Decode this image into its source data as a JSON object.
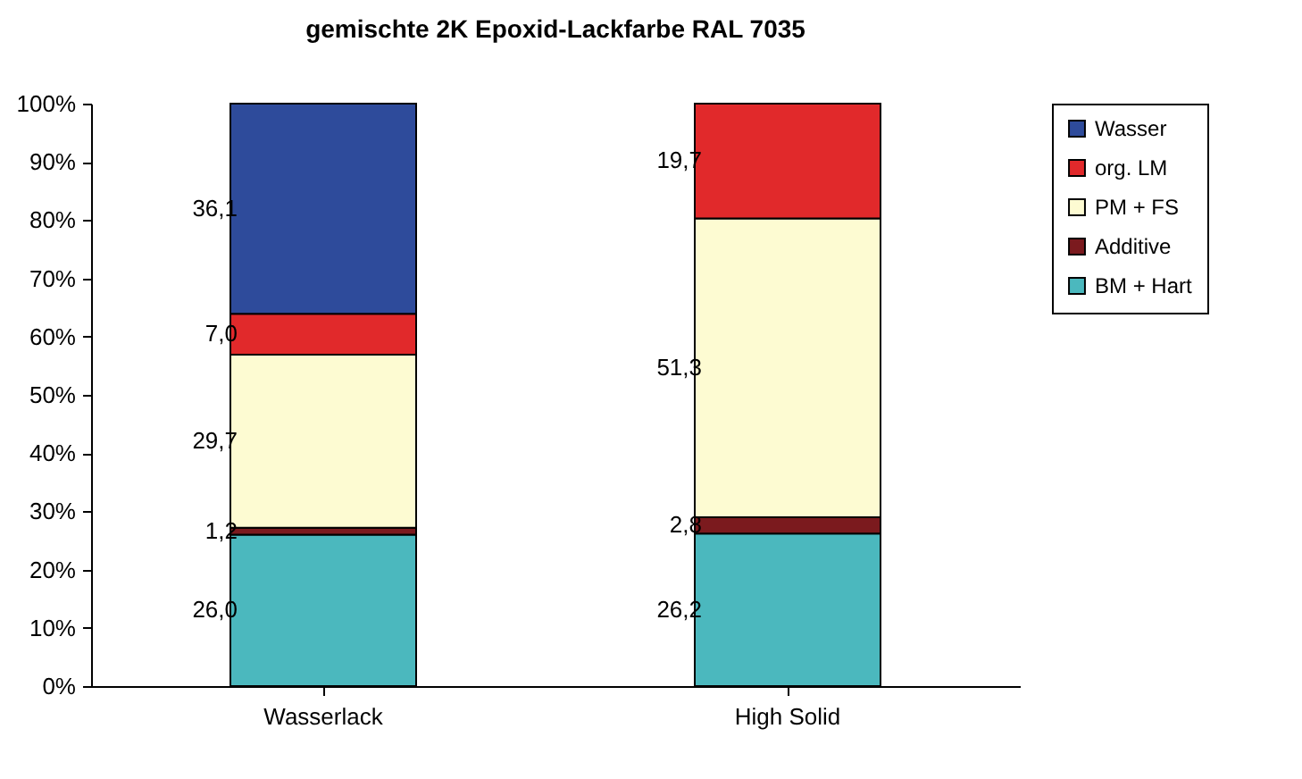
{
  "chart_data": {
    "type": "bar",
    "title": "gemischte  2K  Epoxid-Lackfarbe  RAL  7035",
    "categories": [
      "Wasserlack",
      "High Solid"
    ],
    "stacked": true,
    "series": [
      {
        "name": "BM + Hart",
        "color": "#4bb8be",
        "values": [
          26.0,
          26.2
        ],
        "value_labels": [
          "26,0",
          "26,2"
        ]
      },
      {
        "name": "Additive",
        "color": "#7b1a1e",
        "values": [
          1.2,
          2.8
        ],
        "value_labels": [
          "1,2",
          "2,8"
        ]
      },
      {
        "name": "PM + FS",
        "color": "#fdfbd2",
        "values": [
          29.7,
          51.3
        ],
        "value_labels": [
          "29,7",
          "51,3"
        ]
      },
      {
        "name": "org. LM",
        "color": "#e1292b",
        "values": [
          7.0,
          19.7
        ],
        "value_labels": [
          "7,0",
          "19,7"
        ]
      },
      {
        "name": "Wasser",
        "color": "#2e4b9b",
        "values": [
          36.1,
          null
        ],
        "value_labels": [
          "36,1",
          null
        ]
      }
    ],
    "ylim": [
      0,
      100
    ],
    "yticks": [
      {
        "value": 0,
        "label": "0%"
      },
      {
        "value": 10,
        "label": "10%"
      },
      {
        "value": 20,
        "label": "20%"
      },
      {
        "value": 30,
        "label": "30%"
      },
      {
        "value": 40,
        "label": "40%"
      },
      {
        "value": 50,
        "label": "50%"
      },
      {
        "value": 60,
        "label": "60%"
      },
      {
        "value": 70,
        "label": "70%"
      },
      {
        "value": 80,
        "label": "80%"
      },
      {
        "value": 90,
        "label": "90%"
      },
      {
        "value": 100,
        "label": "100%"
      }
    ],
    "grid": false,
    "legend": "right"
  }
}
